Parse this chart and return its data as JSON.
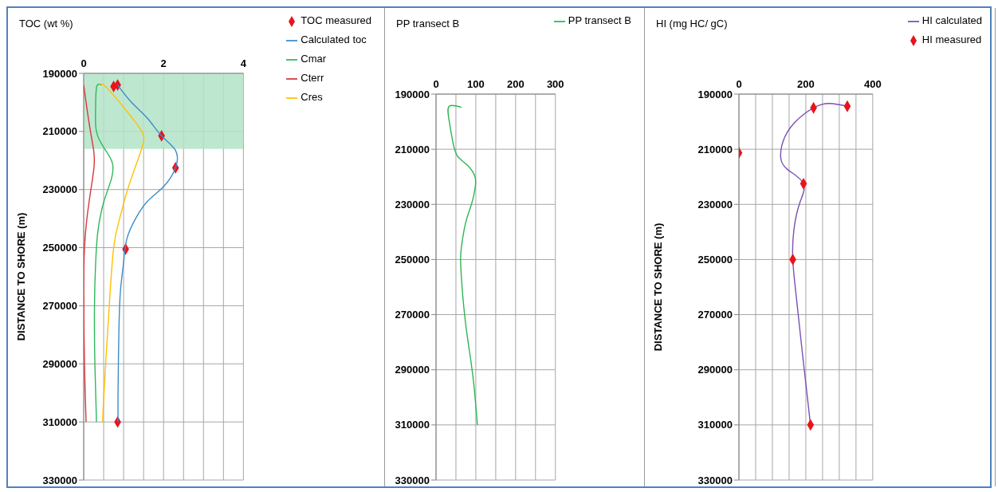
{
  "chart_data": [
    {
      "type": "line",
      "title": "TOC (wt %)",
      "ylabel": "DISTANCE TO SHORE (m)",
      "xlim": [
        0,
        4
      ],
      "xticks": [
        0,
        {
          "value": 0.5,
          "label": null
        },
        {
          "value": 1,
          "label": null
        },
        {
          "value": 1.5,
          "label": null
        },
        2,
        {
          "value": 2.5,
          "label": null
        },
        {
          "value": 3,
          "label": null
        },
        {
          "value": 3.5,
          "label": null
        },
        4
      ],
      "ylim": [
        330000,
        190000
      ],
      "yticks": [
        190000,
        210000,
        230000,
        250000,
        270000,
        290000,
        310000,
        330000
      ],
      "grid": true,
      "legend": "top right",
      "bands": [
        {
          "axis": "y",
          "from": 190000,
          "to": 216000,
          "color": "#b3e3c8"
        }
      ],
      "series": [
        {
          "name": "TOC measured",
          "type": "scatter",
          "marker": "diamond",
          "color": "#e8141c",
          "x": [
            0.75,
            0.85,
            1.95,
            2.3,
            1.05,
            0.85
          ],
          "values": [
            194500,
            194000,
            211500,
            222500,
            250500,
            310000
          ]
        },
        {
          "name": "Calculated  toc",
          "type": "line",
          "marker": "none",
          "color": "#3b8ccb",
          "x": [
            0.85,
            1.2,
            1.6,
            1.95,
            2.3,
            2.3,
            2.0,
            1.6,
            1.3,
            1.08,
            1.0,
            0.92,
            0.88,
            0.86,
            0.86
          ],
          "values": [
            194000,
            200000,
            205500,
            211500,
            216500,
            222500,
            229000,
            234000,
            240000,
            247000,
            255000,
            265000,
            280000,
            300000,
            310000
          ]
        },
        {
          "name": "Cmar",
          "type": "line",
          "marker": "none",
          "color": "#2eb85c",
          "x": [
            0.45,
            0.33,
            0.3,
            0.3,
            0.38,
            0.55,
            0.72,
            0.7,
            0.58,
            0.45,
            0.35,
            0.3,
            0.27,
            0.28,
            0.32
          ],
          "values": [
            194000,
            194300,
            200000,
            208000,
            212500,
            216500,
            221000,
            226000,
            231000,
            237000,
            245000,
            255000,
            270000,
            290000,
            310000
          ]
        },
        {
          "name": "Cterr",
          "type": "line",
          "marker": "none",
          "color": "#d8373b",
          "x": [
            0,
            0.08,
            0.17,
            0.25,
            0.26,
            0.18,
            0.08,
            0.02,
            0,
            0.02,
            0.06
          ],
          "values": [
            194000,
            202000,
            210000,
            216500,
            222000,
            230000,
            240000,
            250000,
            265000,
            290000,
            310000
          ]
        },
        {
          "name": "Cres",
          "type": "line",
          "marker": "none",
          "color": "#ffc000",
          "x": [
            0.4,
            0.55,
            0.9,
            1.25,
            1.5,
            1.45,
            1.35,
            1.1,
            0.9,
            0.75,
            0.64,
            0.55,
            0.47
          ],
          "values": [
            193700,
            194500,
            200000,
            206000,
            211500,
            216000,
            220000,
            230000,
            240000,
            250000,
            270000,
            290000,
            310000
          ]
        }
      ]
    },
    {
      "type": "line",
      "title": "PP transect B",
      "xlim": [
        0,
        300
      ],
      "xticks": [
        0,
        {
          "value": 50,
          "label": null
        },
        100,
        {
          "value": 150,
          "label": null
        },
        200,
        {
          "value": 250,
          "label": null
        },
        300
      ],
      "ylim": [
        330000,
        190000
      ],
      "yticks": [
        190000,
        210000,
        230000,
        250000,
        270000,
        290000,
        310000,
        330000
      ],
      "grid": true,
      "legend": "top right",
      "series": [
        {
          "name": "PP transect B",
          "type": "line",
          "marker": "none",
          "color": "#2db553",
          "x": [
            64,
            34,
            32,
            42,
            54,
            78,
            98,
            98,
            90,
            74,
            64,
            62,
            70,
            82,
            94,
            104
          ],
          "values": [
            194800,
            194300,
            198800,
            207200,
            212500,
            215700,
            220000,
            224200,
            229500,
            236900,
            245300,
            251700,
            267600,
            281300,
            294000,
            310000
          ]
        }
      ]
    },
    {
      "type": "line",
      "title": "HI (mg HC/ gC)",
      "ylabel": "DISTANCE TO SHORE (m)",
      "xlim": [
        0,
        400
      ],
      "xticks": [
        0,
        {
          "value": 50,
          "label": null
        },
        {
          "value": 100,
          "label": null
        },
        {
          "value": 150,
          "label": null
        },
        200,
        {
          "value": 250,
          "label": null
        },
        {
          "value": 300,
          "label": null
        },
        {
          "value": 350,
          "label": null
        },
        400
      ],
      "ylim": [
        330000,
        190000
      ],
      "yticks": [
        190000,
        210000,
        230000,
        250000,
        270000,
        290000,
        310000,
        330000
      ],
      "grid": true,
      "legend": "top right",
      "series": [
        {
          "name": "HI calculated",
          "type": "line",
          "marker": "none",
          "color": "#7b4fb3",
          "x": [
            324,
            271,
            223,
            166,
            133,
            125,
            147,
            193,
            181,
            164,
            161,
            171,
            190,
            214
          ],
          "values": [
            194400,
            193400,
            195000,
            200400,
            206800,
            213200,
            217500,
            222500,
            229800,
            239600,
            250000,
            263000,
            284300,
            310000
          ]
        },
        {
          "name": "HI measured",
          "type": "scatter",
          "marker": "diamond",
          "color": "#e8141c",
          "x": [
            223,
            324,
            0,
            193,
            161,
            214
          ],
          "values": [
            195000,
            194400,
            211300,
            222500,
            250000,
            310000
          ]
        }
      ]
    }
  ]
}
